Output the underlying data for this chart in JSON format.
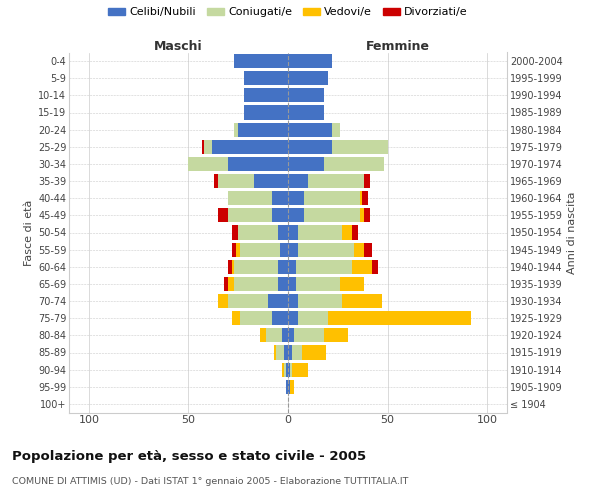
{
  "age_groups": [
    "100+",
    "95-99",
    "90-94",
    "85-89",
    "80-84",
    "75-79",
    "70-74",
    "65-69",
    "60-64",
    "55-59",
    "50-54",
    "45-49",
    "40-44",
    "35-39",
    "30-34",
    "25-29",
    "20-24",
    "15-19",
    "10-14",
    "5-9",
    "0-4"
  ],
  "birth_years": [
    "≤ 1904",
    "1905-1909",
    "1910-1914",
    "1915-1919",
    "1920-1924",
    "1925-1929",
    "1930-1934",
    "1935-1939",
    "1940-1944",
    "1945-1949",
    "1950-1954",
    "1955-1959",
    "1960-1964",
    "1965-1969",
    "1970-1974",
    "1975-1979",
    "1980-1984",
    "1985-1989",
    "1990-1994",
    "1995-1999",
    "2000-2004"
  ],
  "males": {
    "celibi": [
      0,
      1,
      1,
      2,
      3,
      8,
      10,
      5,
      5,
      4,
      5,
      8,
      8,
      17,
      30,
      38,
      25,
      22,
      22,
      22,
      27
    ],
    "coniugati": [
      0,
      0,
      1,
      4,
      8,
      16,
      20,
      22,
      22,
      20,
      20,
      22,
      22,
      18,
      20,
      4,
      2,
      0,
      0,
      0,
      0
    ],
    "vedovi": [
      0,
      0,
      1,
      1,
      3,
      4,
      5,
      3,
      1,
      2,
      0,
      0,
      0,
      0,
      0,
      0,
      0,
      0,
      0,
      0,
      0
    ],
    "divorziati": [
      0,
      0,
      0,
      0,
      0,
      0,
      0,
      2,
      2,
      2,
      3,
      5,
      0,
      2,
      0,
      1,
      0,
      0,
      0,
      0,
      0
    ]
  },
  "females": {
    "nubili": [
      0,
      1,
      1,
      2,
      3,
      5,
      5,
      4,
      4,
      5,
      5,
      8,
      8,
      10,
      18,
      22,
      22,
      18,
      18,
      20,
      22
    ],
    "coniugate": [
      0,
      0,
      1,
      5,
      15,
      15,
      22,
      22,
      28,
      28,
      22,
      28,
      28,
      28,
      30,
      28,
      4,
      0,
      0,
      0,
      0
    ],
    "vedove": [
      0,
      2,
      8,
      12,
      12,
      72,
      20,
      12,
      10,
      5,
      5,
      2,
      1,
      0,
      0,
      0,
      0,
      0,
      0,
      0,
      0
    ],
    "divorziate": [
      0,
      0,
      0,
      0,
      0,
      0,
      0,
      0,
      3,
      4,
      3,
      3,
      3,
      3,
      0,
      0,
      0,
      0,
      0,
      0,
      0
    ]
  },
  "colors": {
    "celibi": "#4472c4",
    "coniugati": "#c5d9a0",
    "vedovi": "#ffc000",
    "divorziati": "#cc0000"
  },
  "xlim": 110,
  "title": "Popolazione per età, sesso e stato civile - 2005",
  "subtitle": "COMUNE DI ATTIMIS (UD) - Dati ISTAT 1° gennaio 2005 - Elaborazione TUTTITALIA.IT",
  "xlabel_left": "Maschi",
  "xlabel_right": "Femmine",
  "ylabel_left": "Fasce di età",
  "ylabel_right": "Anni di nascita",
  "legend_labels": [
    "Celibi/Nubili",
    "Coniugati/e",
    "Vedovi/e",
    "Divorziati/e"
  ],
  "bg_color": "#ffffff"
}
